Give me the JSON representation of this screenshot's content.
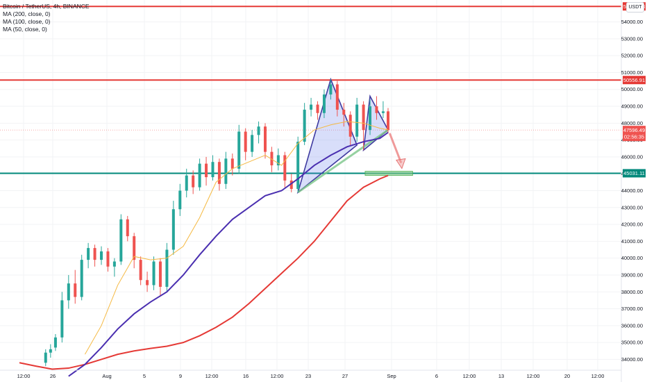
{
  "legend": {
    "title": "Bitcoin / TetherUS, 4h, BINANCE",
    "ma200": "MA (200, close, 0)",
    "ma100": "MA (100, close, 0)",
    "ma50": "MA (50, close, 0)"
  },
  "currency": "USDT",
  "chart_data": {
    "type": "line",
    "y_ticks": [
      34000,
      35000,
      36000,
      37000,
      38000,
      39000,
      40000,
      41000,
      42000,
      43000,
      44000,
      45000,
      46000,
      47000,
      48000,
      49000,
      50000,
      51000,
      52000,
      53000,
      54000
    ],
    "x_ticks": [
      "12:00",
      "26",
      "Aug",
      "5",
      "9",
      "12:00",
      "16",
      "12:00",
      "23",
      "27",
      "Sep",
      "6",
      "12:00",
      "13",
      "12:00",
      "20",
      "12:00"
    ],
    "ylim": [
      33400,
      55300
    ],
    "series": [
      {
        "name": "MA (200, close, 0)",
        "color": "#e53935",
        "values": [
          [
            0,
            33800
          ],
          [
            1,
            33600
          ],
          [
            2,
            33420
          ],
          [
            3,
            33480
          ],
          [
            4,
            33700
          ],
          [
            5,
            34000
          ],
          [
            6,
            34300
          ],
          [
            7,
            34500
          ],
          [
            8,
            34650
          ],
          [
            9,
            34780
          ],
          [
            10,
            35000
          ],
          [
            11,
            35400
          ],
          [
            12,
            35900
          ],
          [
            13,
            36500
          ],
          [
            14,
            37300
          ],
          [
            15,
            38200
          ],
          [
            16,
            39100
          ],
          [
            17,
            40000
          ],
          [
            18,
            41000
          ],
          [
            19,
            42200
          ],
          [
            20,
            43400
          ],
          [
            21,
            44200
          ],
          [
            22,
            44700
          ],
          [
            22.5,
            44900
          ]
        ]
      },
      {
        "name": "MA (100, close, 0)",
        "color": "#4a2fb0",
        "values": [
          [
            3,
            33000
          ],
          [
            4,
            33700
          ],
          [
            5,
            34700
          ],
          [
            6,
            35800
          ],
          [
            7,
            36700
          ],
          [
            8,
            37400
          ],
          [
            9,
            38000
          ],
          [
            10,
            39000
          ],
          [
            11,
            40200
          ],
          [
            12,
            41300
          ],
          [
            13,
            42300
          ],
          [
            14,
            43000
          ],
          [
            15,
            43700
          ],
          [
            16,
            44000
          ],
          [
            17,
            44700
          ],
          [
            18,
            45500
          ],
          [
            19,
            46100
          ],
          [
            20,
            46600
          ],
          [
            21,
            46900
          ],
          [
            22,
            47100
          ],
          [
            22.5,
            47450
          ]
        ]
      },
      {
        "name": "MA (50, close, 0)",
        "color": "#f5b942",
        "values": [
          [
            4,
            34300
          ],
          [
            5,
            36000
          ],
          [
            6,
            38400
          ],
          [
            7,
            40100
          ],
          [
            8,
            39900
          ],
          [
            9,
            40000
          ],
          [
            10,
            40700
          ],
          [
            11,
            42400
          ],
          [
            12,
            44500
          ],
          [
            13,
            45300
          ],
          [
            14,
            45700
          ],
          [
            15,
            46100
          ],
          [
            16,
            45500
          ],
          [
            17,
            46800
          ],
          [
            18,
            47600
          ],
          [
            19,
            47900
          ],
          [
            20,
            48100
          ],
          [
            21,
            48000
          ],
          [
            22,
            47700
          ],
          [
            22.5,
            47600
          ]
        ]
      }
    ],
    "candles": [
      [
        1.6,
        33800,
        34400,
        33600,
        34600
      ],
      [
        1.9,
        34400,
        34600,
        34100,
        34900
      ],
      [
        2.2,
        34700,
        35300,
        34500,
        35500
      ],
      [
        2.6,
        35300,
        37500,
        35000,
        38000
      ],
      [
        3.0,
        37500,
        38500,
        37000,
        39000
      ],
      [
        3.4,
        38500,
        37700,
        37300,
        39300
      ],
      [
        3.8,
        37700,
        39900,
        37500,
        40200
      ],
      [
        4.2,
        39900,
        40600,
        39400,
        40900
      ],
      [
        4.6,
        40600,
        39900,
        39500,
        40800
      ],
      [
        5.0,
        39900,
        40400,
        39600,
        40700
      ],
      [
        5.4,
        40400,
        39500,
        39200,
        40600
      ],
      [
        5.8,
        39500,
        39800,
        38900,
        40000
      ],
      [
        6.2,
        39800,
        42300,
        39600,
        42600
      ],
      [
        6.6,
        42300,
        41300,
        41000,
        42500
      ],
      [
        7.0,
        41300,
        39900,
        39400,
        41500
      ],
      [
        7.4,
        39900,
        38700,
        38400,
        40100
      ],
      [
        7.8,
        38700,
        38400,
        38000,
        39200
      ],
      [
        8.2,
        38400,
        39800,
        38100,
        40100
      ],
      [
        8.6,
        39800,
        38300,
        37800,
        40000
      ],
      [
        9.0,
        38300,
        40500,
        38000,
        40900
      ],
      [
        9.4,
        40500,
        42900,
        40200,
        43400
      ],
      [
        9.8,
        42900,
        44000,
        42500,
        44400
      ],
      [
        10.2,
        44000,
        44900,
        43600,
        45300
      ],
      [
        10.6,
        44900,
        44200,
        43800,
        45200
      ],
      [
        11.0,
        44200,
        45600,
        44000,
        45900
      ],
      [
        11.4,
        45600,
        44800,
        44300,
        46000
      ],
      [
        11.8,
        44800,
        45700,
        44600,
        46100
      ],
      [
        12.2,
        45700,
        44400,
        44000,
        45900
      ],
      [
        12.6,
        44400,
        45900,
        44100,
        46300
      ],
      [
        13.0,
        45900,
        45300,
        44900,
        46200
      ],
      [
        13.4,
        45300,
        47500,
        45000,
        47900
      ],
      [
        13.8,
        47500,
        46300,
        45800,
        47700
      ],
      [
        14.2,
        46300,
        47300,
        46000,
        47600
      ],
      [
        14.6,
        47300,
        47800,
        46800,
        48100
      ],
      [
        15.0,
        47800,
        46300,
        45900,
        48000
      ],
      [
        15.4,
        46300,
        45500,
        45100,
        46600
      ],
      [
        15.8,
        45500,
        46100,
        45200,
        46500
      ],
      [
        16.2,
        46100,
        44600,
        44200,
        46300
      ],
      [
        16.6,
        44600,
        44100,
        43900,
        45000
      ],
      [
        17.0,
        44100,
        46900,
        43900,
        47200
      ],
      [
        17.4,
        46900,
        48800,
        46700,
        49200
      ],
      [
        17.8,
        48800,
        49100,
        48400,
        49500
      ],
      [
        18.2,
        49100,
        48600,
        48200,
        49300
      ],
      [
        18.6,
        48600,
        49700,
        48300,
        50000
      ],
      [
        19.0,
        49700,
        50300,
        49400,
        50600
      ],
      [
        19.4,
        50300,
        48800,
        48400,
        50500
      ],
      [
        19.8,
        48800,
        48500,
        47800,
        49200
      ],
      [
        20.2,
        48500,
        47200,
        46700,
        48700
      ],
      [
        20.6,
        47200,
        49100,
        46900,
        49500
      ],
      [
        21.0,
        49100,
        47600,
        46400,
        49300
      ],
      [
        21.4,
        47600,
        49000,
        47300,
        49400
      ],
      [
        21.8,
        49000,
        48600,
        48200,
        49600
      ],
      [
        22.2,
        48600,
        48700,
        48300,
        49300
      ],
      [
        22.5,
        48700,
        47600,
        47400,
        48900
      ]
    ],
    "horizontal_levels": [
      {
        "price": 54920.73,
        "label": "54920.73",
        "color": "#e53935"
      },
      {
        "price": 50556.91,
        "label": "50556.91",
        "color": "#e53935"
      },
      {
        "price": 45031.11,
        "label": "45031.11",
        "color": "#00897b"
      }
    ],
    "current_price": {
      "label": "47596.49",
      "countdown": "02:56:35",
      "price": 47596.49,
      "color": "#ef5350"
    },
    "pattern": {
      "triangle1": [
        [
          17.0,
          43900
        ],
        [
          19.0,
          50600
        ],
        [
          20.6,
          46700
        ]
      ],
      "triangle2": [
        [
          21.0,
          46400
        ],
        [
          21.4,
          49600
        ],
        [
          22.5,
          47600
        ]
      ],
      "support": [
        [
          17.0,
          43900
        ],
        [
          22.5,
          47600
        ]
      ],
      "target_box": {
        "x0": 21.1,
        "x1": 24.0,
        "low": 44900,
        "high": 45150
      },
      "arrow": {
        "from": [
          22.6,
          47400
        ],
        "to": [
          23.3,
          45400
        ]
      }
    }
  }
}
